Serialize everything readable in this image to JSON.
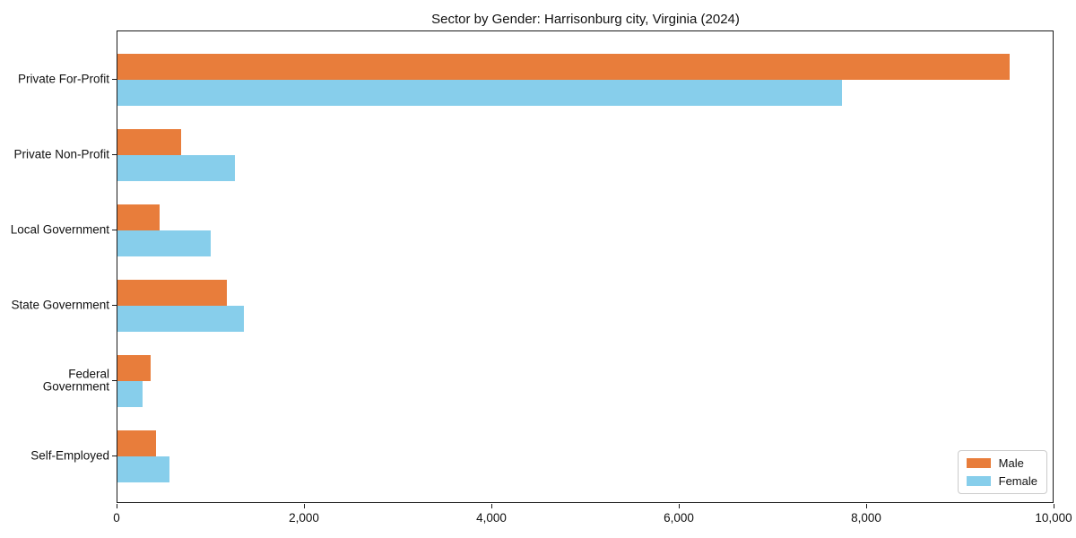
{
  "chart_data": {
    "type": "bar",
    "orientation": "horizontal",
    "title": "Sector by Gender: Harrisonburg city, Virginia (2024)",
    "categories": [
      "Private For-Profit",
      "Private Non-Profit",
      "Local Government",
      "State Government",
      "Federal Government",
      "Self-Employed"
    ],
    "series": [
      {
        "name": "Male",
        "color": "#e87d3b",
        "values": [
          9520,
          680,
          450,
          1170,
          350,
          410
        ]
      },
      {
        "name": "Female",
        "color": "#87ceeb",
        "values": [
          7730,
          1250,
          990,
          1350,
          270,
          550
        ]
      }
    ],
    "xlim": [
      0,
      10000
    ],
    "xticks": [
      0,
      2000,
      4000,
      6000,
      8000,
      10000
    ],
    "xticklabels": [
      "0",
      "2,000",
      "4,000",
      "6,000",
      "8,000",
      "10,000"
    ],
    "xlabel": "",
    "ylabel": "",
    "grid": false,
    "legend_position": "lower right",
    "axis_color": "#1a1a1a"
  }
}
